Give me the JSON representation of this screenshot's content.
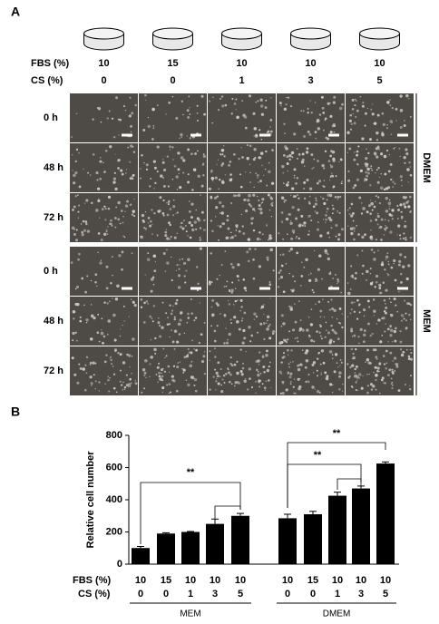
{
  "panel_a": {
    "label": "A",
    "fbs_label": "FBS (%)",
    "cs_label": "CS (%)",
    "fbs": [
      "10",
      "15",
      "10",
      "10",
      "10"
    ],
    "cs": [
      "0",
      "0",
      "1",
      "3",
      "5"
    ],
    "media": [
      "DMEM",
      "MEM"
    ],
    "times": [
      "0 h",
      "48 h",
      "72 h"
    ]
  },
  "chart_data": {
    "type": "bar",
    "label": "B",
    "y_label": "Relative cell number",
    "ylim": [
      0,
      800
    ],
    "yticks": [
      0,
      200,
      400,
      600,
      800
    ],
    "color": "#000000",
    "row_labels": [
      "FBS (%)",
      "CS (%)"
    ],
    "groups": [
      {
        "name": "MEM",
        "fbs": [
          10,
          15,
          10,
          10,
          10
        ],
        "cs": [
          0,
          0,
          1,
          3,
          5
        ],
        "values": [
          100,
          190,
          200,
          250,
          300
        ],
        "errors": [
          10,
          5,
          3,
          30,
          15
        ]
      },
      {
        "name": "DMEM",
        "fbs": [
          10,
          15,
          10,
          10,
          10
        ],
        "cs": [
          0,
          0,
          1,
          3,
          5
        ],
        "values": [
          285,
          310,
          425,
          470,
          625
        ],
        "errors": [
          25,
          18,
          22,
          15,
          10
        ]
      }
    ],
    "significance": [
      "**",
      "**",
      "**"
    ]
  }
}
